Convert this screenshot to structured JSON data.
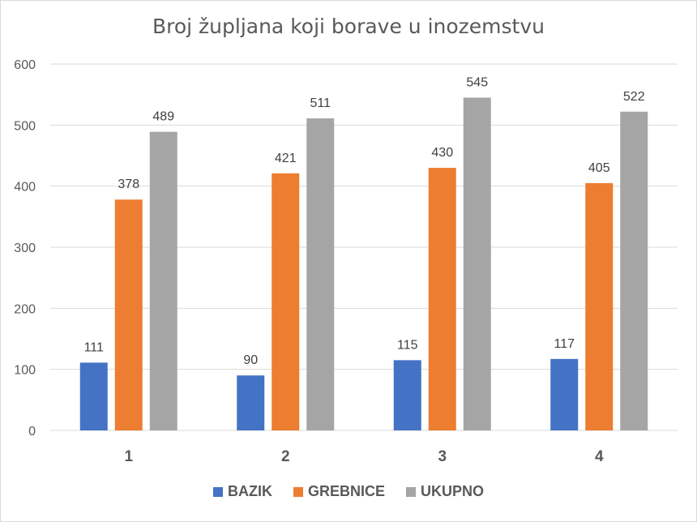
{
  "chart_data": {
    "type": "bar",
    "title": "Broj župljana koji borave u inozemstvu",
    "xlabel": "",
    "ylabel": "",
    "categories": [
      "1",
      "2",
      "3",
      "4"
    ],
    "series": [
      {
        "name": "BAZIK",
        "color": "#4472c4",
        "values": [
          111,
          90,
          115,
          117
        ]
      },
      {
        "name": "GREBNICE",
        "color": "#ed7d31",
        "values": [
          378,
          421,
          430,
          405
        ]
      },
      {
        "name": "UKUPNO",
        "color": "#a5a5a5",
        "values": [
          489,
          511,
          545,
          522
        ]
      }
    ],
    "ylim": [
      0,
      600
    ],
    "yticks": [
      0,
      100,
      200,
      300,
      400,
      500,
      600
    ],
    "grid": true,
    "data_labels": true,
    "legend_position": "bottom"
  }
}
